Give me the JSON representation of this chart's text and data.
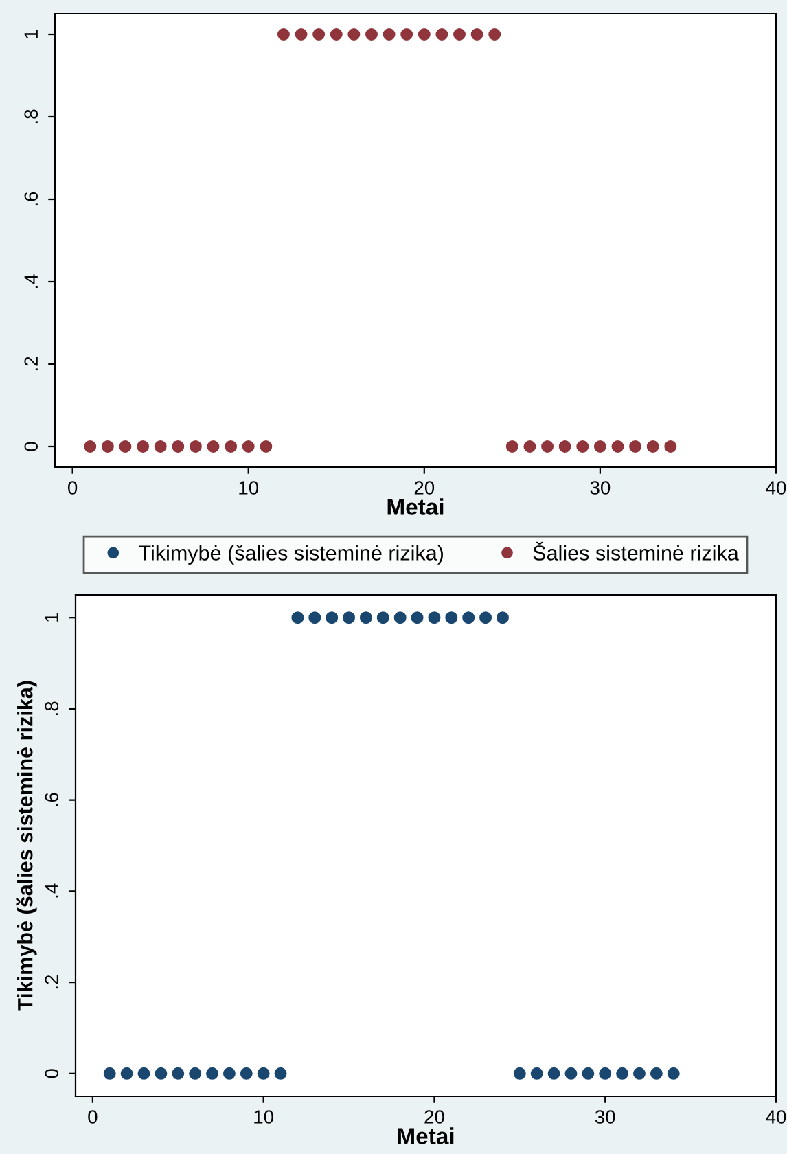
{
  "chart_data": [
    {
      "type": "scatter",
      "xlabel": "Metai",
      "xlim": [
        -1,
        40
      ],
      "xticks": [
        0,
        10,
        20,
        30,
        40
      ],
      "ylim": [
        -0.05,
        1.05
      ],
      "yticks": [
        0,
        {
          "value": 0.2,
          "label": ".2"
        },
        {
          "value": 0.4,
          "label": ".4"
        },
        {
          "value": 0.6,
          "label": ".6"
        },
        {
          "value": 0.8,
          "label": ".8"
        },
        1
      ],
      "grid": false,
      "legend": "bottom",
      "marker": "circle",
      "x": [
        1,
        2,
        3,
        4,
        5,
        6,
        7,
        8,
        9,
        10,
        11,
        12,
        13,
        14,
        15,
        16,
        17,
        18,
        19,
        20,
        21,
        22,
        23,
        24,
        25,
        26,
        27,
        28,
        29,
        30,
        31,
        32,
        33,
        34
      ],
      "series": [
        {
          "name": "Tikimybė (šalies sisteminė rizika)",
          "color": "#1a476f",
          "values": [
            null,
            null,
            null,
            null,
            null,
            null,
            null,
            null,
            null,
            null,
            null,
            null,
            null,
            null,
            null,
            null,
            null,
            null,
            null,
            null,
            null,
            null,
            null,
            null,
            null,
            null,
            null,
            null,
            null,
            null,
            null,
            null,
            null,
            null
          ]
        },
        {
          "name": "Šalies sisteminė rizika",
          "color": "#90353b",
          "values": [
            0,
            0,
            0,
            0,
            0,
            0,
            0,
            0,
            0,
            0,
            0,
            1,
            1,
            1,
            1,
            1,
            1,
            1,
            1,
            1,
            1,
            1,
            1,
            1,
            0,
            0,
            0,
            0,
            0,
            0,
            0,
            0,
            0,
            0
          ]
        }
      ]
    },
    {
      "type": "scatter",
      "xlabel": "Metai",
      "ylabel": "Tikimybė (šalies sisteminė rizika)",
      "xlim": [
        -1,
        40
      ],
      "xticks": [
        0,
        10,
        20,
        30,
        40
      ],
      "ylim": [
        -0.05,
        1.05
      ],
      "yticks": [
        0,
        {
          "value": 0.2,
          "label": ".2"
        },
        {
          "value": 0.4,
          "label": ".4"
        },
        {
          "value": 0.6,
          "label": ".6"
        },
        {
          "value": 0.8,
          "label": ".8"
        },
        1
      ],
      "grid": false,
      "marker": "circle",
      "x": [
        1,
        2,
        3,
        4,
        5,
        6,
        7,
        8,
        9,
        10,
        11,
        12,
        13,
        14,
        15,
        16,
        17,
        18,
        19,
        20,
        21,
        22,
        23,
        24,
        25,
        26,
        27,
        28,
        29,
        30,
        31,
        32,
        33,
        34
      ],
      "series": [
        {
          "color": "#1a476f",
          "values": [
            0,
            0,
            0,
            0,
            0,
            0,
            0,
            0,
            0,
            0,
            0,
            1,
            1,
            1,
            1,
            1,
            1,
            1,
            1,
            1,
            1,
            1,
            1,
            1,
            0,
            0,
            0,
            0,
            0,
            0,
            0,
            0,
            0,
            0
          ]
        }
      ]
    }
  ]
}
